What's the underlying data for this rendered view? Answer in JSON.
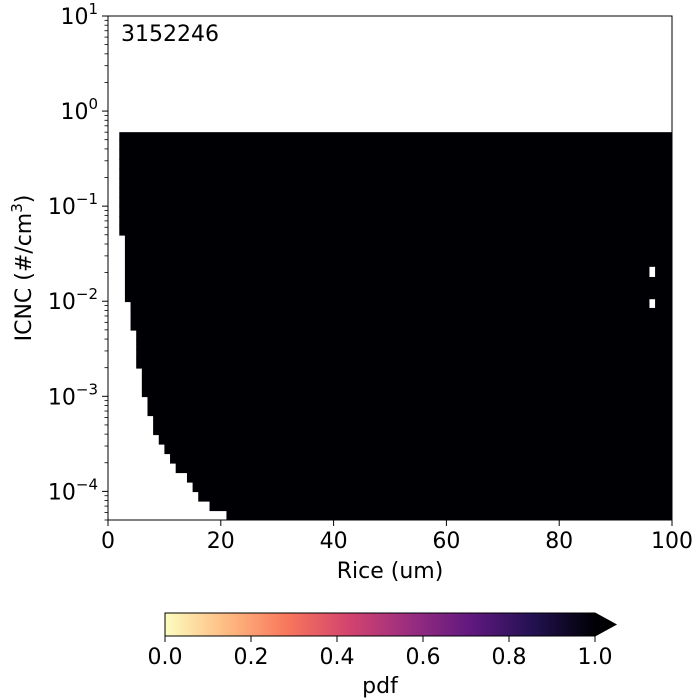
{
  "chart_data": {
    "type": "heatmap",
    "annotation": "3152246",
    "xlabel": "Rice (um)",
    "ylabel_main": "ICNC (#/cm",
    "ylabel_sup": "3",
    "ylabel_close": ")",
    "xlim": [
      0,
      100
    ],
    "ylim": [
      5e-05,
      10
    ],
    "y_scale": "log",
    "x_ticks": [
      {
        "value": 0,
        "label": "0"
      },
      {
        "value": 20,
        "label": "20"
      },
      {
        "value": 40,
        "label": "40"
      },
      {
        "value": 60,
        "label": "60"
      },
      {
        "value": 80,
        "label": "80"
      },
      {
        "value": 100,
        "label": "100"
      }
    ],
    "y_ticks": [
      {
        "value": 0.0001,
        "base": "10",
        "exp": "−4"
      },
      {
        "value": 0.001,
        "base": "10",
        "exp": "−3"
      },
      {
        "value": 0.01,
        "base": "10",
        "exp": "−2"
      },
      {
        "value": 0.1,
        "base": "10",
        "exp": "−1"
      },
      {
        "value": 1,
        "base": "10",
        "exp": "0"
      },
      {
        "value": 10,
        "base": "10",
        "exp": "1"
      }
    ],
    "filled_region": {
      "pdf_value": 1.0,
      "y_top": 0.6,
      "boundary_x_min_by_icnc": [
        [
          5e-05,
          22
        ],
        [
          6e-05,
          19.5
        ],
        [
          8e-05,
          16.5
        ],
        [
          0.0001,
          15
        ],
        [
          0.0002,
          11
        ],
        [
          0.0005,
          7.5
        ],
        [
          0.001,
          6
        ],
        [
          0.003,
          4.5
        ],
        [
          0.01,
          3
        ],
        [
          0.05,
          2
        ],
        [
          0.6,
          1
        ]
      ],
      "holes": [
        {
          "x": [
            96,
            97
          ],
          "y": [
            0.018,
            0.023
          ]
        },
        {
          "x": [
            96,
            97
          ],
          "y": [
            0.0085,
            0.0105
          ]
        }
      ]
    },
    "colorbar": {
      "label": "pdf",
      "colormap": "magma_r",
      "range": [
        0,
        1
      ],
      "extend": "max",
      "ticks": [
        {
          "value": 0.0,
          "label": "0.0"
        },
        {
          "value": 0.2,
          "label": "0.2"
        },
        {
          "value": 0.4,
          "label": "0.4"
        },
        {
          "value": 0.6,
          "label": "0.6"
        },
        {
          "value": 0.8,
          "label": "0.8"
        },
        {
          "value": 1.0,
          "label": "1.0"
        }
      ],
      "color_stops": [
        "#fcfdbf",
        "#febb81",
        "#f8765c",
        "#d3436e",
        "#982d80",
        "#5f187f",
        "#221150",
        "#000004"
      ]
    }
  }
}
